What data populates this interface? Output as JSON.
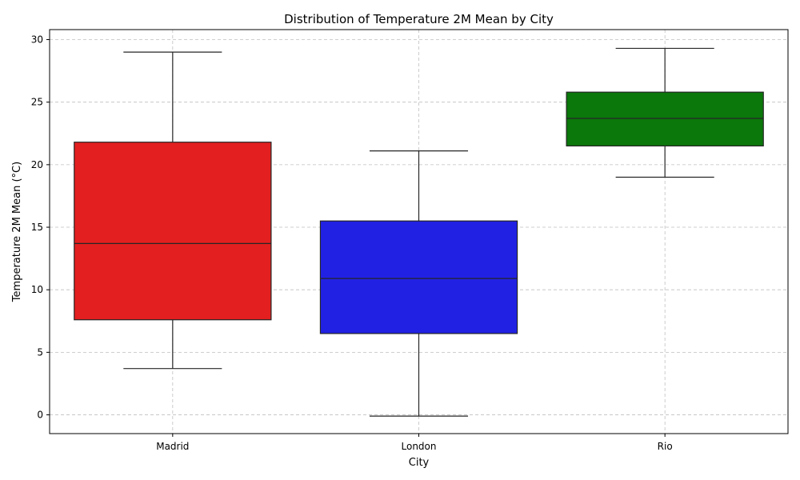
{
  "chart_data": {
    "type": "box",
    "title": "Distribution of Temperature 2M Mean by City",
    "xlabel": "City",
    "ylabel": "Temperature 2M Mean (°C)",
    "ylim": [
      -1.5,
      30.8
    ],
    "yticks": [
      0,
      5,
      10,
      15,
      20,
      25,
      30
    ],
    "grid": true,
    "categories": [
      "Madrid",
      "London",
      "Rio"
    ],
    "boxes": [
      {
        "category": "Madrid",
        "color": "#e31f1f",
        "whisker_low": 3.7,
        "q1": 7.6,
        "median": 13.7,
        "q3": 21.8,
        "whisker_high": 29.0
      },
      {
        "category": "London",
        "color": "#2121e3",
        "whisker_low": -0.1,
        "q1": 6.5,
        "median": 10.9,
        "q3": 15.5,
        "whisker_high": 21.1
      },
      {
        "category": "Rio",
        "color": "#0a780a",
        "whisker_low": 19.0,
        "q1": 21.5,
        "median": 23.7,
        "q3": 25.8,
        "whisker_high": 29.3
      }
    ]
  }
}
